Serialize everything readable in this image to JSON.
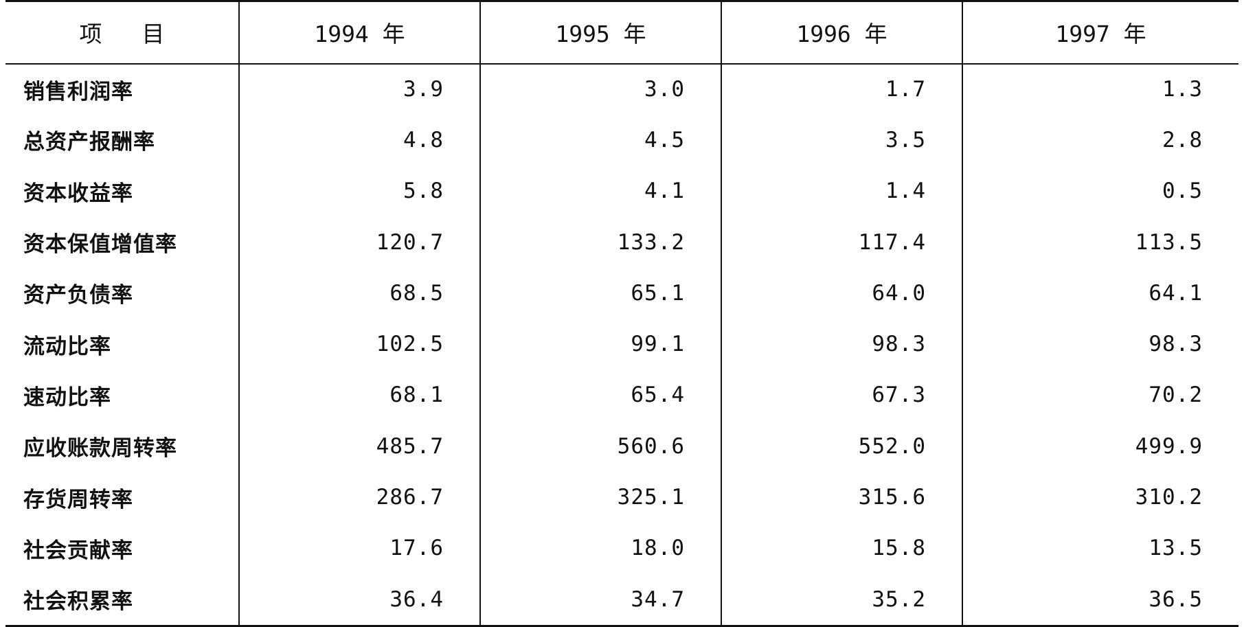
{
  "table": {
    "header": [
      "项目",
      "1994 年",
      "1995 年",
      "1996 年",
      "1997 年"
    ],
    "rows": [
      {
        "label": "销售利润率",
        "values": [
          "3.9",
          "3.0",
          "1.7",
          "1.3"
        ]
      },
      {
        "label": "总资产报酬率",
        "values": [
          "4.8",
          "4.5",
          "3.5",
          "2.8"
        ]
      },
      {
        "label": "资本收益率",
        "values": [
          "5.8",
          "4.1",
          "1.4",
          "0.5"
        ]
      },
      {
        "label": "资本保值增值率",
        "values": [
          "120.7",
          "133.2",
          "117.4",
          "113.5"
        ]
      },
      {
        "label": "资产负债率",
        "values": [
          "68.5",
          "65.1",
          "64.0",
          "64.1"
        ]
      },
      {
        "label": "流动比率",
        "values": [
          "102.5",
          "99.1",
          "98.3",
          "98.3"
        ]
      },
      {
        "label": "速动比率",
        "values": [
          "68.1",
          "65.4",
          "67.3",
          "70.2"
        ]
      },
      {
        "label": "应收账款周转率",
        "values": [
          "485.7",
          "560.6",
          "552.0",
          "499.9"
        ]
      },
      {
        "label": "存货周转率",
        "values": [
          "286.7",
          "325.1",
          "315.6",
          "310.2"
        ]
      },
      {
        "label": "社会贡献率",
        "values": [
          "17.6",
          "18.0",
          "15.8",
          "13.5"
        ]
      },
      {
        "label": "社会积累率",
        "values": [
          "36.4",
          "34.7",
          "35.2",
          "36.5"
        ]
      }
    ]
  }
}
